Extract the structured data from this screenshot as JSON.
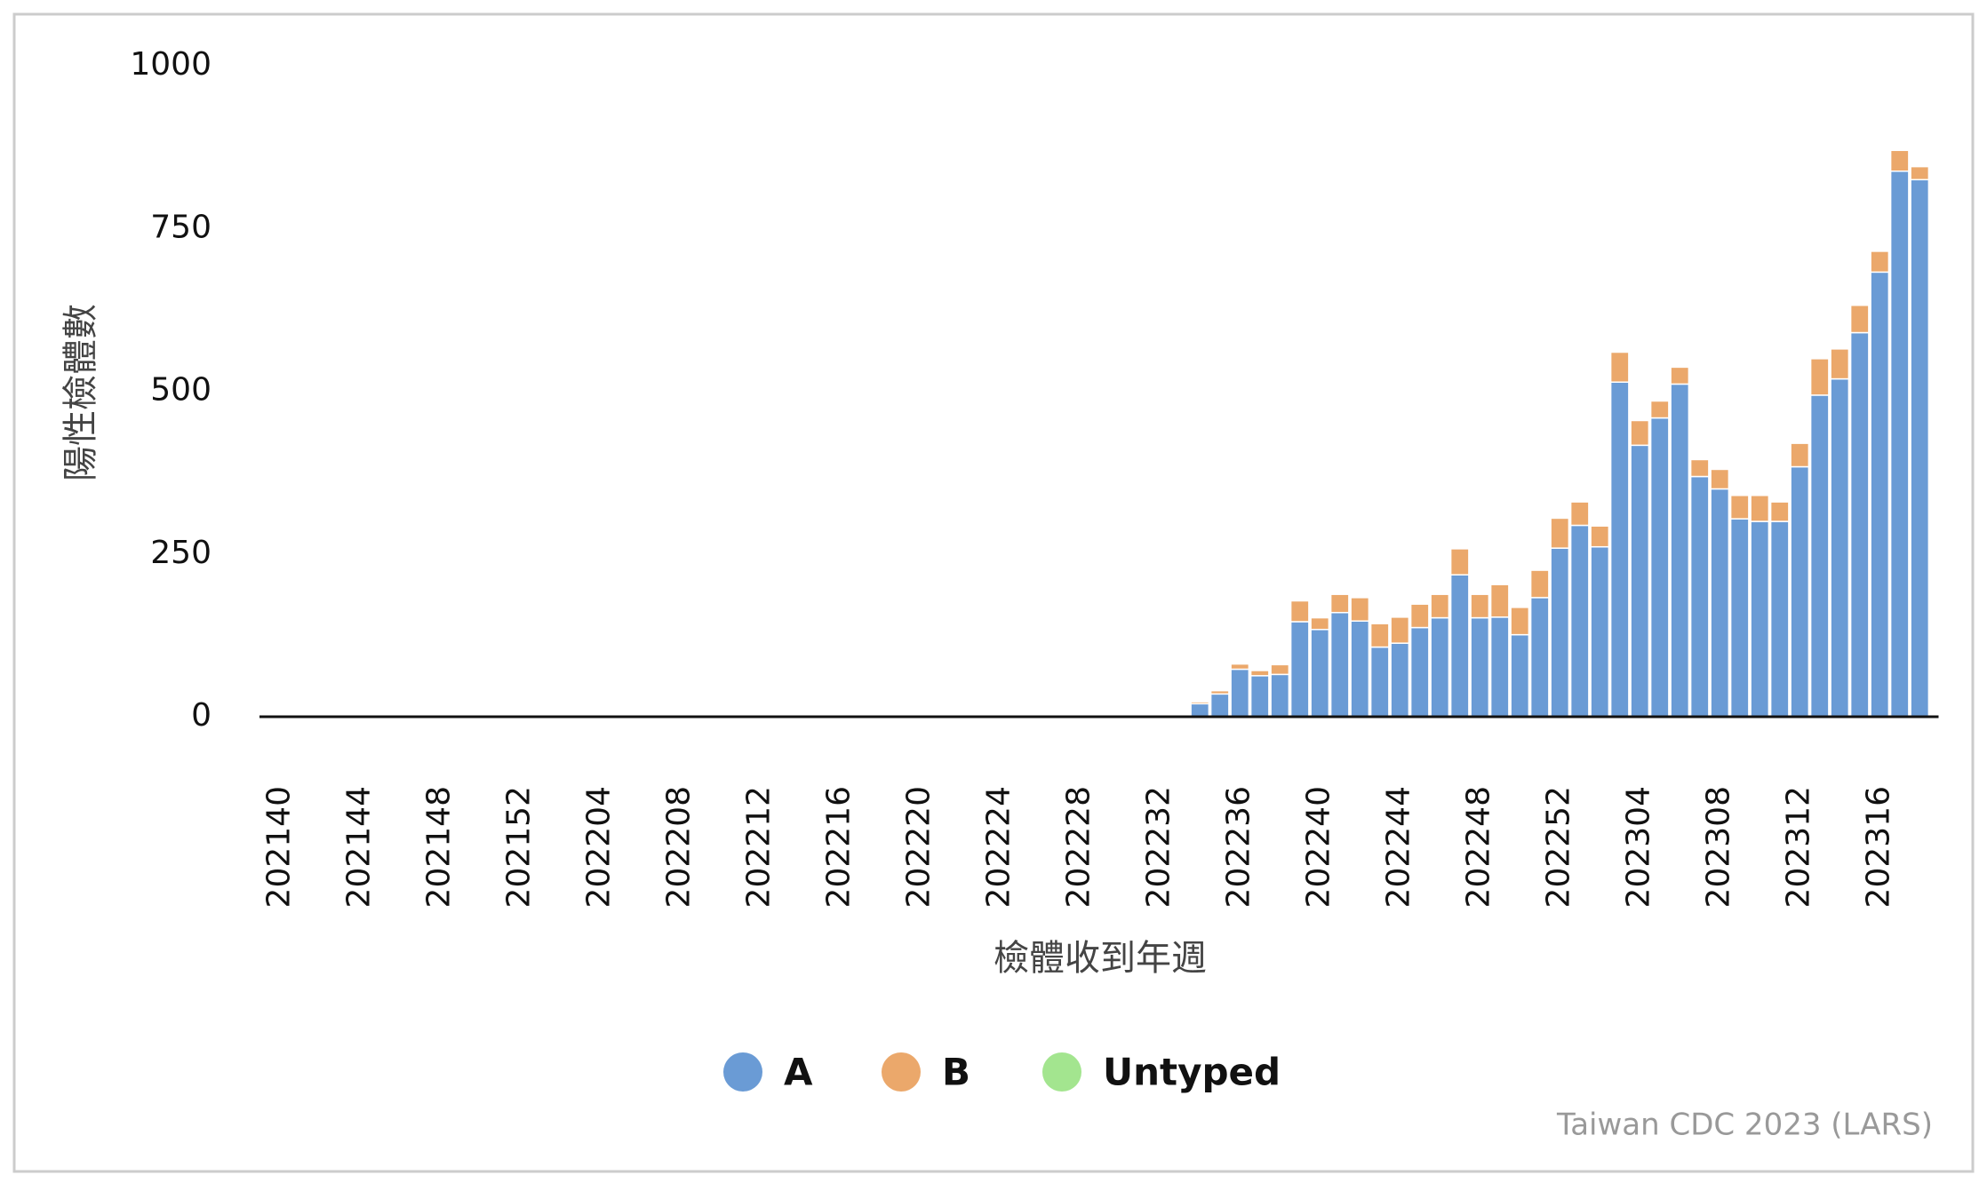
{
  "chart_data": {
    "type": "stacked_bar",
    "xlabel": "檢體收到年週",
    "ylabel": "陽性檢體數",
    "credit": "Taiwan CDC 2023 (LARS)",
    "categories": [
      "202140",
      null,
      null,
      null,
      "202144",
      null,
      null,
      null,
      "202148",
      null,
      null,
      null,
      "202152",
      null,
      null,
      null,
      "202204",
      null,
      null,
      null,
      "202208",
      null,
      null,
      null,
      "202212",
      null,
      null,
      null,
      "202216",
      null,
      null,
      null,
      "202220",
      null,
      null,
      null,
      "202224",
      null,
      null,
      null,
      "202228",
      null,
      null,
      null,
      "202232",
      null,
      null,
      null,
      "202236",
      null,
      null,
      null,
      "202240",
      null,
      null,
      null,
      "202244",
      null,
      null,
      null,
      "202248",
      null,
      null,
      null,
      "202252",
      null,
      null,
      null,
      "202304",
      null,
      null,
      null,
      "202308",
      null,
      null,
      null,
      "202312",
      null,
      null,
      null,
      "202316",
      null,
      null
    ],
    "series": [
      {
        "name": "A",
        "color": "#6a9bd5",
        "values": [
          0,
          0,
          0,
          0,
          0,
          0,
          0,
          0,
          0,
          0,
          0,
          0,
          0,
          0,
          0,
          0,
          0,
          0,
          0,
          0,
          0,
          0,
          0,
          0,
          0,
          0,
          0,
          0,
          0,
          0,
          0,
          0,
          0,
          0,
          0,
          0,
          0,
          0,
          0,
          0,
          0,
          0,
          0,
          0,
          0,
          3,
          20,
          35,
          73,
          63,
          65,
          146,
          134,
          160,
          147,
          107,
          113,
          137,
          152,
          218,
          152,
          153,
          126,
          183,
          259,
          294,
          261,
          514,
          417,
          459,
          511,
          369,
          350,
          304,
          300,
          300,
          384,
          494,
          519,
          590,
          683,
          838,
          825
        ]
      },
      {
        "name": "B",
        "color": "#eba86b",
        "values": [
          0,
          0,
          0,
          0,
          0,
          0,
          0,
          0,
          0,
          0,
          0,
          2,
          0,
          2,
          2,
          0,
          2,
          0,
          0,
          0,
          0,
          0,
          0,
          0,
          2,
          0,
          2,
          0,
          0,
          0,
          0,
          0,
          0,
          0,
          0,
          0,
          0,
          0,
          0,
          0,
          0,
          0,
          0,
          0,
          0,
          0,
          3,
          5,
          8,
          8,
          15,
          32,
          18,
          28,
          36,
          36,
          40,
          36,
          36,
          40,
          36,
          50,
          42,
          42,
          46,
          36,
          32,
          46,
          38,
          26,
          26,
          26,
          30,
          36,
          40,
          30,
          36,
          56,
          46,
          42,
          32,
          32,
          20
        ]
      },
      {
        "name": "Untyped",
        "color": "#a3e58f",
        "values": [
          0,
          0,
          0,
          0,
          0,
          0,
          0,
          0,
          0,
          0,
          0,
          0,
          0,
          0,
          0,
          0,
          0,
          0,
          0,
          0,
          0,
          0,
          0,
          0,
          0,
          0,
          0,
          0,
          0,
          0,
          0,
          0,
          0,
          0,
          0,
          0,
          0,
          0,
          0,
          0,
          0,
          0,
          0,
          0,
          0,
          0,
          0,
          0,
          0,
          0,
          0,
          0,
          0,
          0,
          0,
          0,
          0,
          0,
          0,
          0,
          0,
          0,
          0,
          0,
          0,
          0,
          0,
          0,
          0,
          0,
          0,
          0,
          0,
          0,
          0,
          0,
          0,
          0,
          0,
          0,
          0,
          0,
          0
        ]
      }
    ],
    "ylim": [
      0,
      1000
    ],
    "yticks": [
      0,
      250,
      500,
      750,
      1000
    ],
    "legend": "bottom"
  }
}
